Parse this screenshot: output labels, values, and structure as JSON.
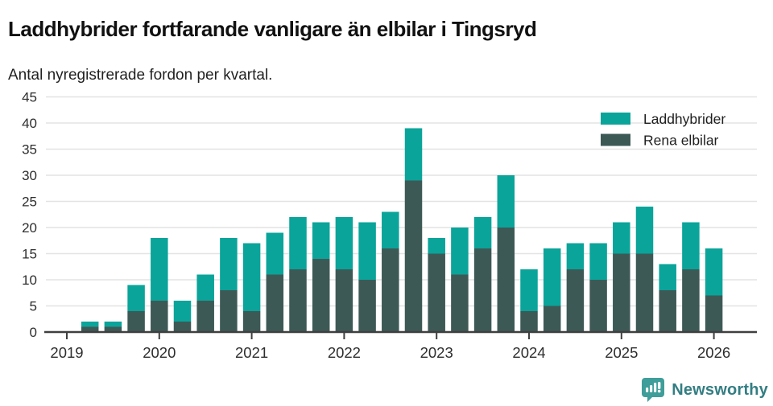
{
  "header": {
    "title": "Laddhybrider fortfarande vanligare än elbilar i Tingsryd",
    "subtitle": "Antal nyregistrerade fordon per kvartal."
  },
  "chart_data": {
    "type": "bar",
    "stacked": true,
    "title": "Laddhybrider fortfarande vanligare än elbilar i Tingsryd",
    "subtitle": "Antal nyregistrerade fordon per kvartal.",
    "xlabel": "",
    "ylabel": "",
    "ylim": [
      0,
      45
    ],
    "ytick_step": 5,
    "grid": "horizontal",
    "legend_position": "top-right",
    "x_tick_labels": [
      "2019",
      "2020",
      "2021",
      "2022",
      "2023",
      "2024",
      "2025",
      "2026"
    ],
    "quarters": [
      "2019 Q1",
      "2019 Q2",
      "2019 Q3",
      "2019 Q4",
      "2020 Q1",
      "2020 Q2",
      "2020 Q3",
      "2020 Q4",
      "2021 Q1",
      "2021 Q2",
      "2021 Q3",
      "2021 Q4",
      "2022 Q1",
      "2022 Q2",
      "2022 Q3",
      "2022 Q4",
      "2023 Q1",
      "2023 Q2",
      "2023 Q3",
      "2023 Q4",
      "2024 Q1",
      "2024 Q2",
      "2024 Q3",
      "2024 Q4",
      "2025 Q1",
      "2025 Q2",
      "2025 Q3",
      "2025 Q4",
      "2026 Q1"
    ],
    "series": [
      {
        "name": "Rena elbilar",
        "stack_order": "bottom",
        "color": "#3d5956",
        "values": [
          0,
          1,
          1,
          4,
          6,
          2,
          6,
          8,
          4,
          11,
          12,
          14,
          12,
          10,
          16,
          29,
          15,
          11,
          16,
          20,
          4,
          5,
          12,
          10,
          15,
          15,
          8,
          12,
          7
        ]
      },
      {
        "name": "Laddhybrider",
        "stack_order": "top",
        "color": "#0aa49a",
        "values": [
          0,
          1,
          1,
          5,
          12,
          4,
          5,
          10,
          13,
          8,
          10,
          7,
          10,
          11,
          7,
          10,
          3,
          9,
          6,
          10,
          8,
          11,
          5,
          7,
          6,
          9,
          5,
          9,
          9
        ]
      }
    ],
    "totals": [
      0,
      2,
      2,
      9,
      18,
      6,
      11,
      18,
      17,
      19,
      22,
      21,
      22,
      21,
      23,
      39,
      18,
      20,
      22,
      30,
      12,
      16,
      17,
      17,
      21,
      24,
      13,
      21,
      16
    ],
    "legend": [
      {
        "label": "Laddhybrider",
        "color": "#0aa49a"
      },
      {
        "label": "Rena elbilar",
        "color": "#3d5956"
      }
    ]
  },
  "colors": {
    "laddhybrider": "#0aa49a",
    "rena_elbilar": "#3d5956",
    "axis": "#3f3f3f",
    "grid": "#e3e3e3",
    "tick_text": "#2e2e2e",
    "brand_mark": "#3f9e99",
    "brand_text": "#337e83"
  },
  "footer": {
    "brand": "Newsworthy"
  }
}
